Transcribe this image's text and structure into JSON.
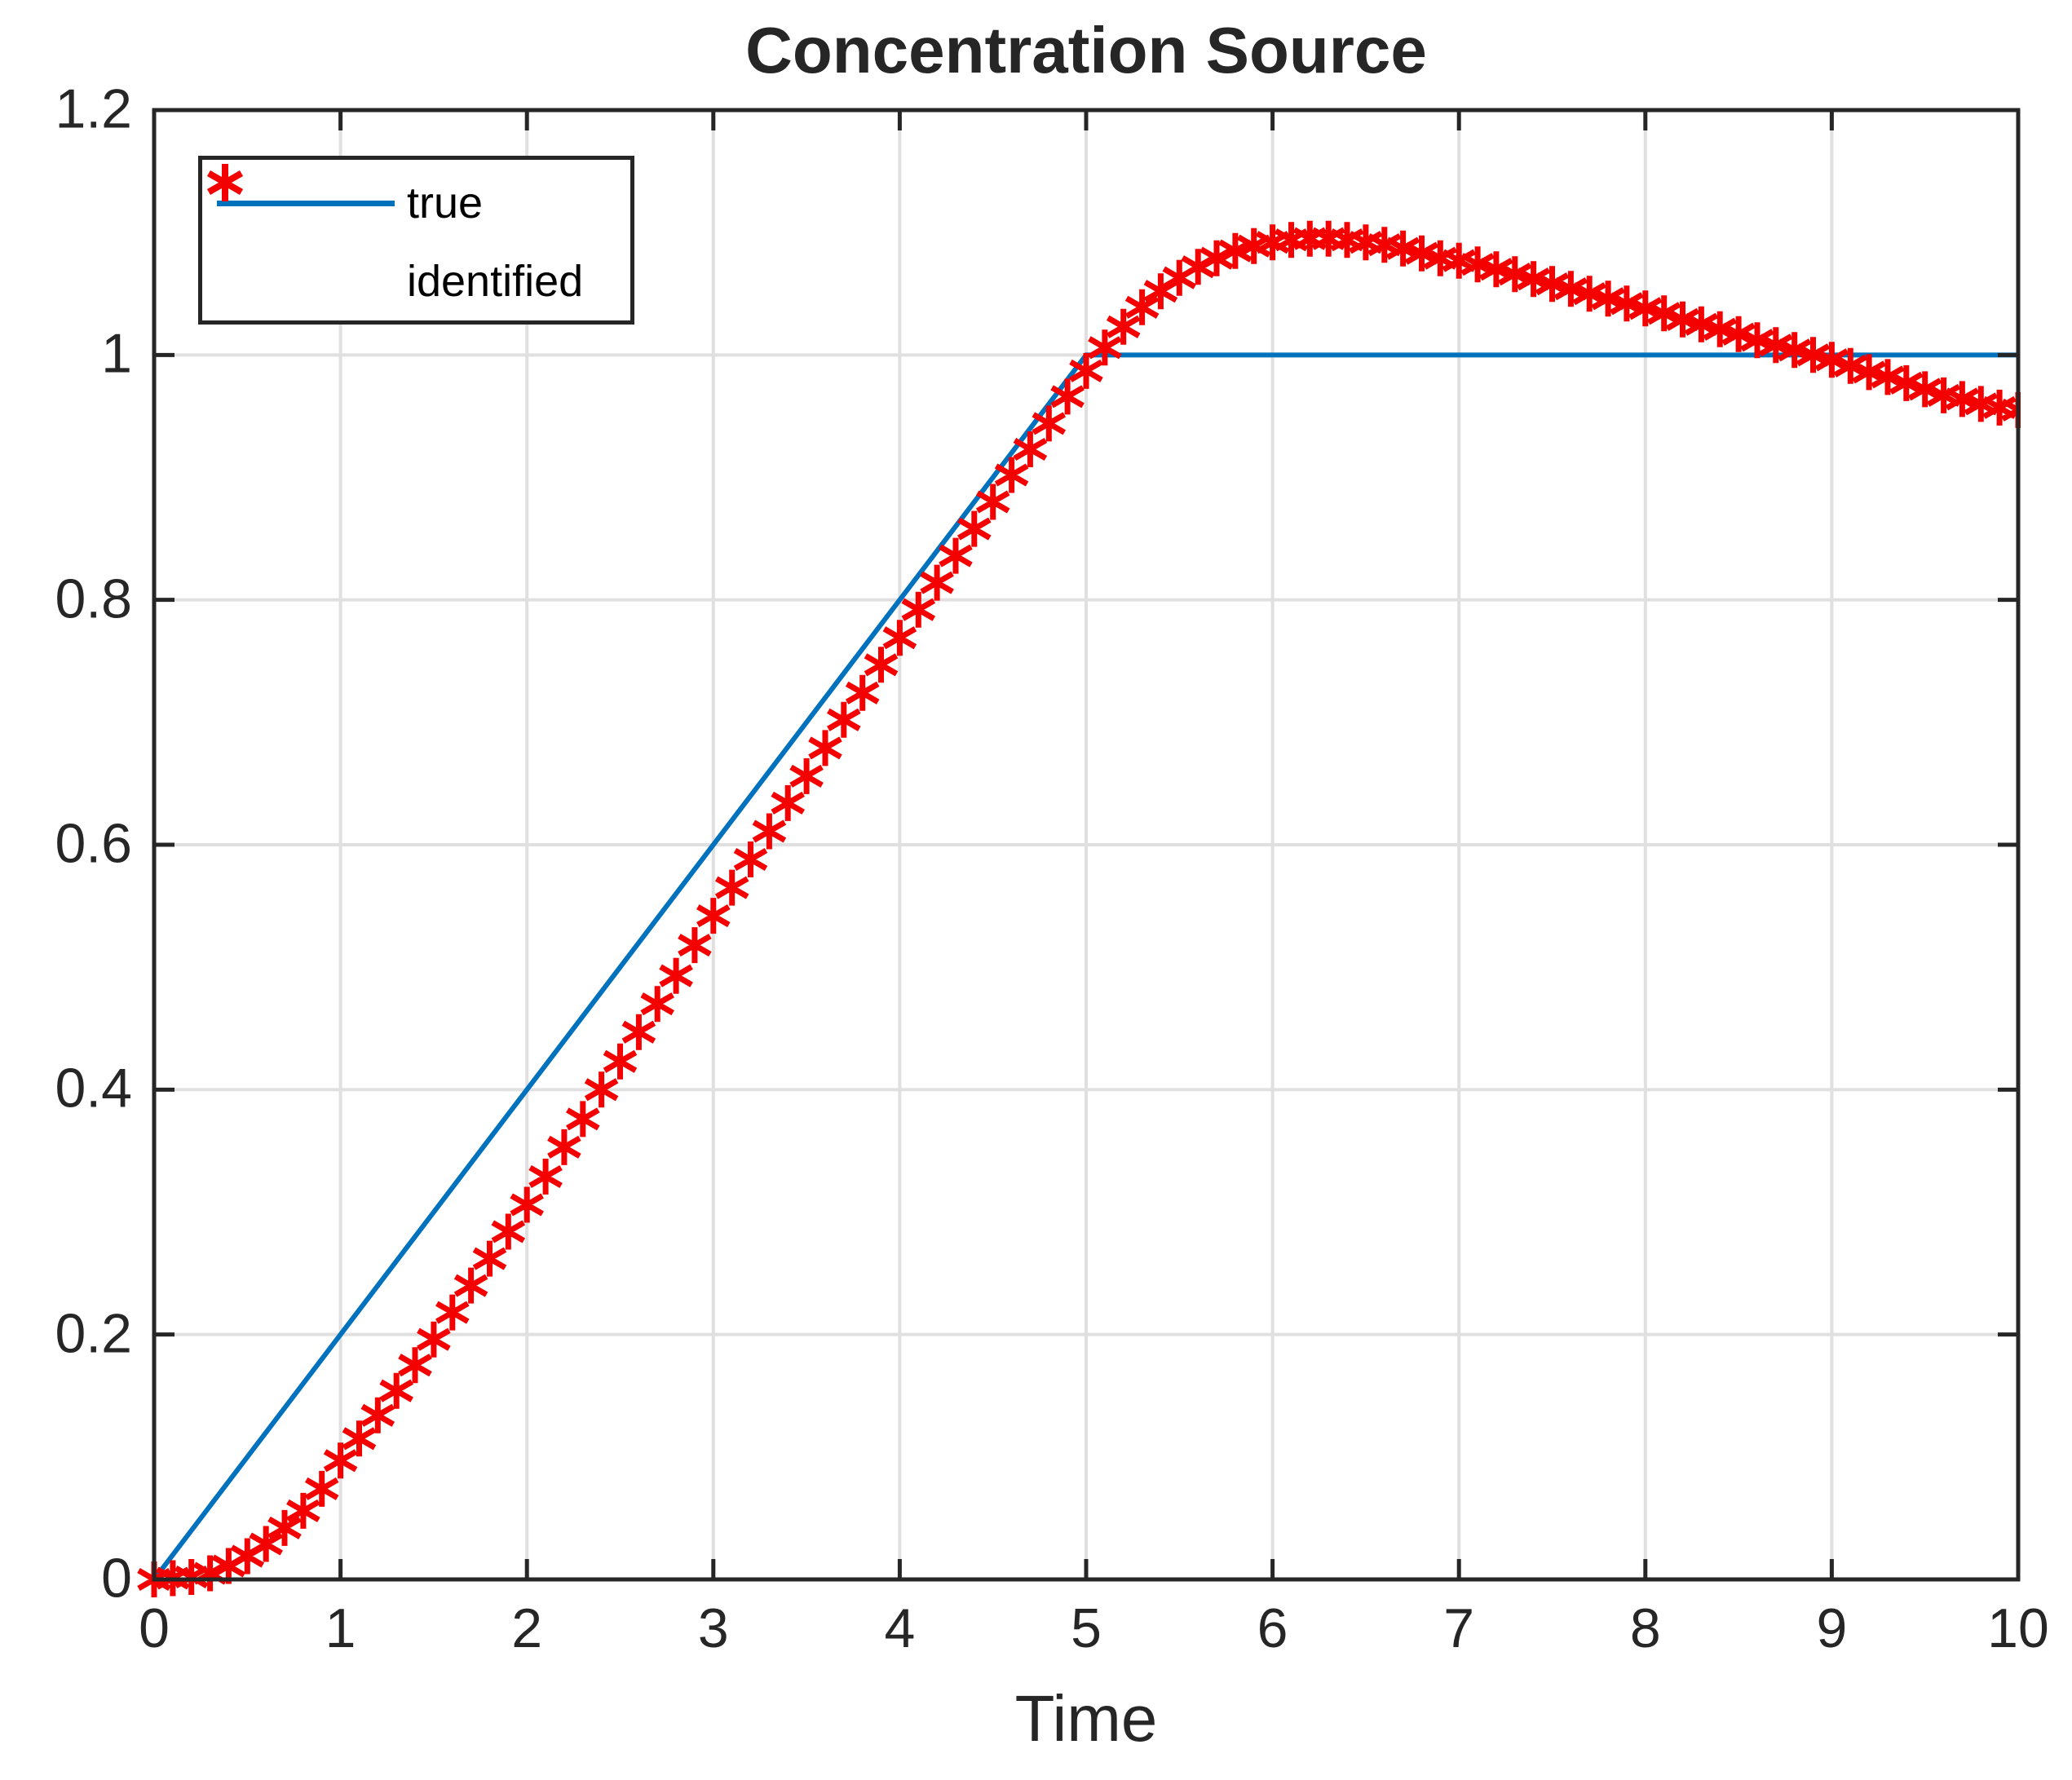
{
  "figure": {
    "title": "Concentration Source",
    "x_axis": {
      "label": "Time",
      "tick_values": [
        0,
        1,
        2,
        3,
        4,
        5,
        6,
        7,
        8,
        9,
        10
      ],
      "tick_labels": [
        "0",
        "1",
        "2",
        "3",
        "4",
        "5",
        "6",
        "7",
        "8",
        "9",
        "10"
      ]
    },
    "y_axis": {
      "label": "",
      "tick_values": [
        0,
        0.2,
        0.4,
        0.6,
        0.8,
        1,
        1.2
      ],
      "tick_labels": [
        "0",
        "0.2",
        "0.4",
        "0.6",
        "0.8",
        "1",
        "1.2"
      ]
    },
    "legend": {
      "entries": [
        {
          "label": "true",
          "swatch": "line",
          "color": "#0072BD"
        },
        {
          "label": "identified",
          "swatch": "asterisk",
          "color": "#f40000"
        }
      ]
    },
    "colors": {
      "true_line": "#0072BD",
      "identified_marker": "#f40000",
      "grid": "#e0e0e0",
      "axis": "#262626",
      "background": "#ffffff"
    }
  },
  "chart_data": {
    "type": "line",
    "title": "Concentration Source",
    "xlabel": "Time",
    "ylabel": "",
    "xlim": [
      0,
      10
    ],
    "ylim": [
      0,
      1.2
    ],
    "grid": true,
    "legend_position": "top-left",
    "series": [
      {
        "name": "true",
        "type": "line",
        "color": "#0072BD",
        "points": [
          [
            0,
            0
          ],
          [
            5,
            1
          ],
          [
            10,
            1
          ]
        ]
      },
      {
        "name": "identified",
        "type": "scatter",
        "marker": "asterisk",
        "color": "#f40000",
        "x_start": 0,
        "x_step": 0.1,
        "n_points": 101,
        "values": [
          0.0,
          0.001,
          0.002,
          0.005,
          0.011,
          0.019,
          0.029,
          0.042,
          0.056,
          0.074,
          0.097,
          0.115,
          0.134,
          0.154,
          0.175,
          0.196,
          0.218,
          0.24,
          0.262,
          0.284,
          0.306,
          0.329,
          0.353,
          0.376,
          0.4,
          0.423,
          0.447,
          0.47,
          0.493,
          0.518,
          0.542,
          0.565,
          0.588,
          0.611,
          0.634,
          0.656,
          0.679,
          0.702,
          0.724,
          0.747,
          0.769,
          0.792,
          0.814,
          0.836,
          0.858,
          0.88,
          0.902,
          0.923,
          0.944,
          0.966,
          0.987,
          1.006,
          1.023,
          1.039,
          1.052,
          1.063,
          1.072,
          1.079,
          1.085,
          1.089,
          1.092,
          1.094,
          1.095,
          1.095,
          1.094,
          1.092,
          1.09,
          1.087,
          1.083,
          1.079,
          1.077,
          1.074,
          1.07,
          1.066,
          1.062,
          1.058,
          1.054,
          1.05,
          1.046,
          1.042,
          1.038,
          1.034,
          1.029,
          1.025,
          1.021,
          1.017,
          1.012,
          1.008,
          1.004,
          1.0,
          0.996,
          0.991,
          0.986,
          0.982,
          0.977,
          0.972,
          0.967,
          0.964,
          0.96,
          0.957,
          0.955
        ]
      }
    ]
  }
}
